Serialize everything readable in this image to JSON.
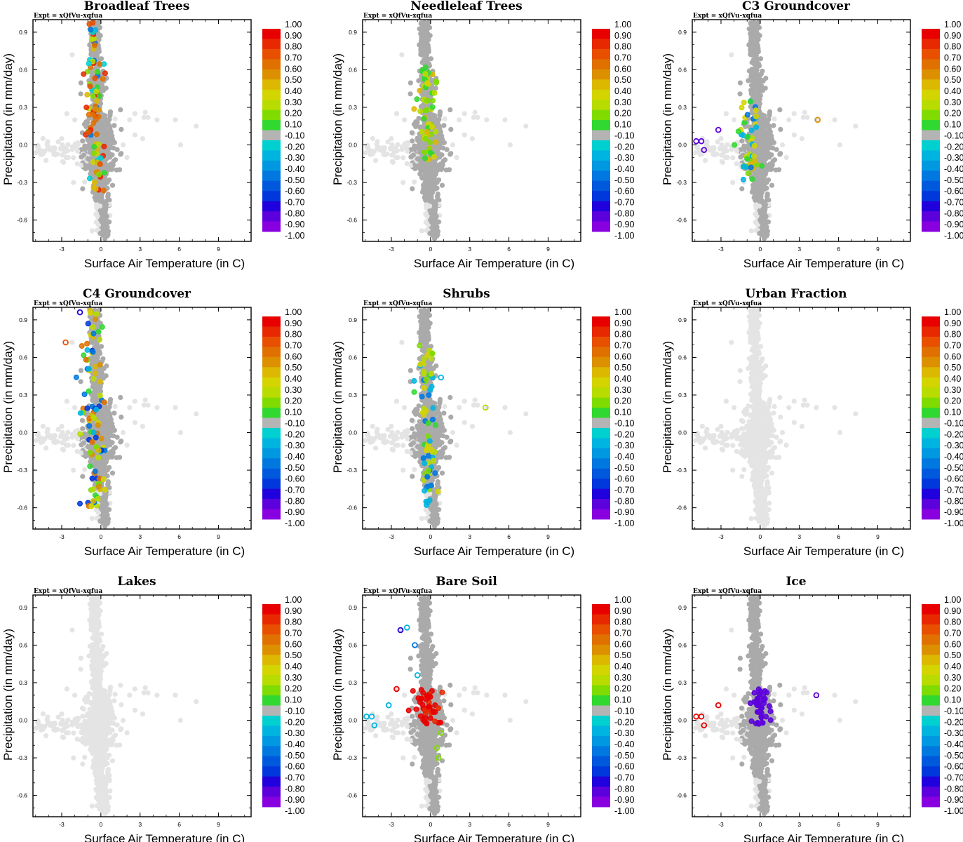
{
  "figure_title": "",
  "common": {
    "expt_label": "Expt = xQfVu-xqfua",
    "xlabel": "Surface Air Temperature (in C)",
    "ylabel": "Precipitation (in mm/day)",
    "xticks": [
      "-3",
      "0",
      "3",
      "6",
      "9"
    ],
    "xtick_values": [
      -3,
      0,
      3,
      6,
      9
    ],
    "yticks": [
      "0.9",
      "0.6",
      "0.3",
      "0.0",
      "-0.3",
      "-0.6"
    ],
    "ytick_values": [
      0.9,
      0.6,
      0.3,
      0.0,
      -0.3,
      -0.6
    ],
    "xlim": [
      -5.2,
      11.5
    ],
    "ylim": [
      -0.77,
      1.0
    ],
    "colorbar": {
      "labels": [
        "1.00",
        "0.90",
        "0.80",
        "0.70",
        "0.60",
        "0.50",
        "0.40",
        "0.30",
        "0.20",
        "0.10",
        "-0.10",
        "-0.20",
        "-0.30",
        "-0.40",
        "-0.50",
        "-0.60",
        "-0.70",
        "-0.80",
        "-0.90",
        "-1.00"
      ],
      "colors": [
        "#e80000",
        "#e82800",
        "#e85000",
        "#e07000",
        "#dc9000",
        "#dcb800",
        "#d4d400",
        "#b8dc00",
        "#80dc00",
        "#30d830",
        "#b4b4b4",
        "#00d0d0",
        "#00b4e0",
        "#0098e0",
        "#0078e0",
        "#0058dc",
        "#0038dc",
        "#2000dc",
        "#5c00dc",
        "#8800e0"
      ]
    },
    "background_point_colors": {
      "light": "#e4e4e4",
      "grey": "#aaaaaa"
    }
  },
  "chart_data": [
    {
      "type": "scatter",
      "title": "Broadleaf Trees",
      "xlabel": "Surface Air Temperature (in C)",
      "ylabel": "Precipitation (in mm/day)",
      "xlim": [
        -5.2,
        11.5
      ],
      "ylim": [
        -0.77,
        1.0
      ],
      "colorbar_range": [
        -1.0,
        1.0
      ],
      "cloud": "grey",
      "highlight": {
        "color_values": [
          0.95,
          0.9,
          0.8,
          0.7,
          0.6,
          0.5,
          0.4,
          0.3,
          0.2,
          0.1,
          -0.2,
          -0.3,
          -0.5
        ],
        "x_center": -0.4,
        "x_spread": 0.7,
        "y_range": [
          -0.38,
          0.98
        ],
        "count": 85
      }
    },
    {
      "type": "scatter",
      "title": "Needleleaf Trees",
      "xlabel": "Surface Air Temperature (in C)",
      "ylabel": "Precipitation (in mm/day)",
      "xlim": [
        -5.2,
        11.5
      ],
      "ylim": [
        -0.77,
        1.0
      ],
      "colorbar_range": [
        -1.0,
        1.0
      ],
      "cloud": "grey",
      "highlight": {
        "color_values": [
          0.5,
          0.4,
          0.3,
          0.2,
          0.1
        ],
        "x_center": -0.2,
        "x_spread": 0.6,
        "y_range": [
          -0.12,
          0.62
        ],
        "count": 60
      }
    },
    {
      "type": "scatter",
      "title": "C3 Groundcover",
      "xlabel": "Surface Air Temperature (in C)",
      "ylabel": "Precipitation (in mm/day)",
      "xlim": [
        -5.2,
        11.5
      ],
      "ylim": [
        -0.77,
        1.0
      ],
      "colorbar_range": [
        -1.0,
        1.0
      ],
      "cloud": "grey",
      "highlight": {
        "color_values": [
          0.5,
          0.4,
          0.3,
          0.2,
          0.1,
          -0.3,
          -0.5
        ],
        "x_center": -0.8,
        "x_spread": 0.9,
        "y_range": [
          -0.3,
          0.35
        ],
        "count": 45
      },
      "extra_points": [
        {
          "x": -4.9,
          "y": 0.03,
          "c": -0.9
        },
        {
          "x": -4.5,
          "y": 0.03,
          "c": -0.9
        },
        {
          "x": -4.3,
          "y": -0.04,
          "c": -0.9
        },
        {
          "x": -3.2,
          "y": 0.12,
          "c": -0.9
        },
        {
          "x": 4.4,
          "y": 0.2,
          "c": 0.6
        }
      ]
    },
    {
      "type": "scatter",
      "title": "C4 Groundcover",
      "xlabel": "Surface Air Temperature (in C)",
      "ylabel": "Precipitation (in mm/day)",
      "xlim": [
        -5.2,
        11.5
      ],
      "ylim": [
        -0.77,
        1.0
      ],
      "colorbar_range": [
        -1.0,
        1.0
      ],
      "cloud": "grey",
      "highlight": {
        "color_values": [
          0.7,
          0.6,
          0.5,
          0.4,
          0.3,
          0.2,
          0.1,
          -0.3,
          -0.5,
          -0.7
        ],
        "x_center": -0.5,
        "x_spread": 0.8,
        "y_range": [
          -0.6,
          0.98
        ],
        "count": 95
      },
      "extra_points": [
        {
          "x": -2.7,
          "y": 0.72,
          "c": 0.8
        },
        {
          "x": -1.6,
          "y": 0.96,
          "c": -0.8
        }
      ]
    },
    {
      "type": "scatter",
      "title": "Shrubs",
      "xlabel": "Surface Air Temperature (in C)",
      "ylabel": "Precipitation (in mm/day)",
      "xlim": [
        -5.2,
        11.5
      ],
      "ylim": [
        -0.77,
        1.0
      ],
      "colorbar_range": [
        -1.0,
        1.0
      ],
      "cloud": "grey",
      "highlight": {
        "color_values": [
          0.4,
          0.3,
          0.2,
          0.1,
          -0.3,
          -0.5
        ],
        "x_center": -0.3,
        "x_spread": 0.7,
        "y_range": [
          -0.6,
          0.72
        ],
        "count": 70
      },
      "extra_points": [
        {
          "x": 4.2,
          "y": 0.2,
          "c": 0.3
        },
        {
          "x": 0.8,
          "y": 0.44,
          "c": -0.3
        }
      ]
    },
    {
      "type": "scatter",
      "title": "Urban Fraction",
      "xlabel": "Surface Air Temperature (in C)",
      "ylabel": "Precipitation (in mm/day)",
      "xlim": [
        -5.2,
        11.5
      ],
      "ylim": [
        -0.77,
        1.0
      ],
      "colorbar_range": [
        -1.0,
        1.0
      ],
      "cloud": "light",
      "highlight": {
        "color_values": [],
        "count": 0
      }
    },
    {
      "type": "scatter",
      "title": "Lakes",
      "xlabel": "Surface Air Temperature (in C)",
      "ylabel": "Precipitation (in mm/day)",
      "xlim": [
        -5.2,
        11.5
      ],
      "ylim": [
        -0.77,
        1.0
      ],
      "colorbar_range": [
        -1.0,
        1.0
      ],
      "cloud": "light",
      "highlight": {
        "color_values": [],
        "count": 0
      }
    },
    {
      "type": "scatter",
      "title": "Bare Soil",
      "xlabel": "Surface Air Temperature (in C)",
      "ylabel": "Precipitation (in mm/day)",
      "xlim": [
        -5.2,
        11.5
      ],
      "ylim": [
        -0.77,
        1.0
      ],
      "colorbar_range": [
        -1.0,
        1.0
      ],
      "cloud": "grey",
      "highlight": {
        "color_values": [
          1.0,
          1.0,
          1.0,
          0.95
        ],
        "x_center": -0.2,
        "x_spread": 1.1,
        "y_range": [
          -0.03,
          0.25
        ],
        "count": 45
      },
      "extra_points": [
        {
          "x": -4.9,
          "y": 0.03,
          "c": -0.3
        },
        {
          "x": -4.5,
          "y": 0.03,
          "c": -0.3
        },
        {
          "x": -4.3,
          "y": -0.04,
          "c": -0.3
        },
        {
          "x": -3.2,
          "y": 0.12,
          "c": -0.3
        },
        {
          "x": -2.3,
          "y": 0.72,
          "c": -0.8
        },
        {
          "x": -1.8,
          "y": 0.74,
          "c": -0.3
        },
        {
          "x": -2.6,
          "y": 0.25,
          "c": 1.0
        },
        {
          "x": 0.8,
          "y": -0.1,
          "c": 0.2
        },
        {
          "x": 0.5,
          "y": -0.22,
          "c": 0.2
        },
        {
          "x": 0.6,
          "y": -0.3,
          "c": 0.2
        },
        {
          "x": -1.0,
          "y": 0.36,
          "c": -0.3
        },
        {
          "x": -1.2,
          "y": 0.6,
          "c": -0.5
        }
      ]
    },
    {
      "type": "scatter",
      "title": "Ice",
      "xlabel": "Surface Air Temperature (in C)",
      "ylabel": "Precipitation (in mm/day)",
      "xlim": [
        -5.2,
        11.5
      ],
      "ylim": [
        -0.77,
        1.0
      ],
      "colorbar_range": [
        -1.0,
        1.0
      ],
      "cloud": "grey",
      "highlight": {
        "color_values": [
          -0.9
        ],
        "x_center": 0.0,
        "x_spread": 0.9,
        "y_range": [
          -0.03,
          0.25
        ],
        "count": 40
      },
      "extra_points": [
        {
          "x": -4.9,
          "y": 0.03,
          "c": 1.0
        },
        {
          "x": -4.5,
          "y": 0.03,
          "c": 1.0
        },
        {
          "x": -4.3,
          "y": -0.04,
          "c": 1.0
        },
        {
          "x": -3.2,
          "y": 0.12,
          "c": 1.0
        },
        {
          "x": 4.3,
          "y": 0.2,
          "c": -0.9
        }
      ]
    }
  ]
}
